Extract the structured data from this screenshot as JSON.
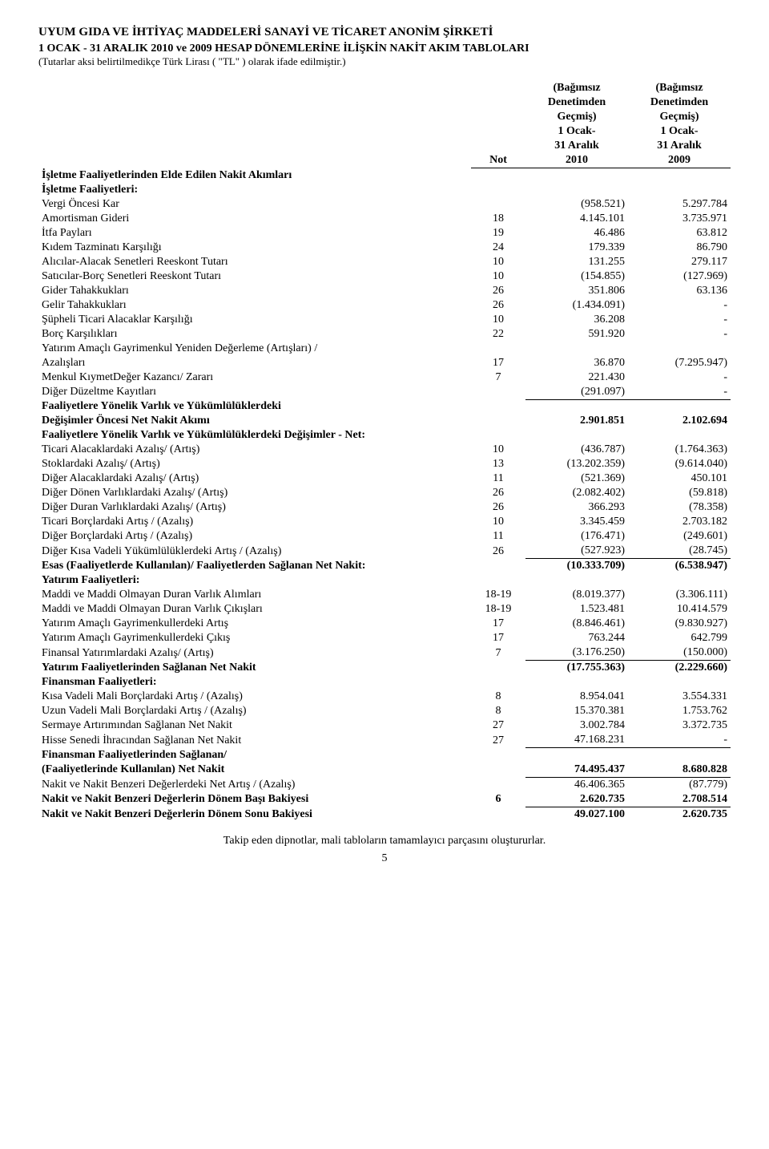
{
  "header": {
    "company": "UYUM GIDA VE İHTİYAÇ MADDELERİ SANAYİ VE TİCARET ANONİM ŞİRKETİ",
    "line1": "1 OCAK - 31 ARALIK 2010 ve 2009 HESAP DÖNEMLERİNE İLİŞKİN NAKİT AKIM TABLOLARI",
    "line2": "(Tutarlar aksi belirtilmedikçe Türk Lirası ( \"TL\" ) olarak ifade edilmiştir.)"
  },
  "colhdr": {
    "not": "Not",
    "c1a": "(Bağımsız",
    "c1b": "Denetimden",
    "c1c": "Geçmiş)",
    "c1d": "1 Ocak-",
    "c1e": "31 Aralık",
    "c1f": "2010",
    "c2a": "(Bağımsız",
    "c2b": "Denetimden",
    "c2c": "Geçmiş)",
    "c2d": "1 Ocak-",
    "c2e": "31 Aralık",
    "c2f": "2009"
  },
  "rows": [
    {
      "label": "İşletme Faaliyetlerinden Elde Edilen Nakit Akımları",
      "not": "",
      "v1": "",
      "v2": "",
      "bold": true
    },
    {
      "label": "İşletme Faaliyetleri:",
      "not": "",
      "v1": "",
      "v2": "",
      "bold": true
    },
    {
      "label": "Vergi Öncesi Kar",
      "not": "",
      "v1": "(958.521)",
      "v2": "5.297.784"
    },
    {
      "label": "Amortisman Gideri",
      "not": "18",
      "v1": "4.145.101",
      "v2": "3.735.971"
    },
    {
      "label": "İtfa Payları",
      "not": "19",
      "v1": "46.486",
      "v2": "63.812"
    },
    {
      "label": "Kıdem Tazminatı Karşılığı",
      "not": "24",
      "v1": "179.339",
      "v2": "86.790"
    },
    {
      "label": "Alıcılar-Alacak Senetleri Reeskont Tutarı",
      "not": "10",
      "v1": "131.255",
      "v2": "279.117"
    },
    {
      "label": "Satıcılar-Borç Senetleri Reeskont Tutarı",
      "not": "10",
      "v1": "(154.855)",
      "v2": "(127.969)"
    },
    {
      "label": "Gider Tahakkukları",
      "not": "26",
      "v1": "351.806",
      "v2": "63.136"
    },
    {
      "label": "Gelir Tahakkukları",
      "not": "26",
      "v1": "(1.434.091)",
      "v2": "-"
    },
    {
      "label": "Şüpheli Ticari Alacaklar Karşılığı",
      "not": "10",
      "v1": "36.208",
      "v2": "-"
    },
    {
      "label": "Borç Karşılıkları",
      "not": "22",
      "v1": "591.920",
      "v2": "-"
    },
    {
      "label": "Yatırım Amaçlı Gayrimenkul Yeniden Değerleme (Artışları) /",
      "not": "",
      "v1": "",
      "v2": ""
    },
    {
      "label": "Azalışları",
      "not": "17",
      "v1": "36.870",
      "v2": "(7.295.947)"
    },
    {
      "label": "Menkul KıymetDeğer Kazancı/ Zararı",
      "not": "7",
      "v1": "221.430",
      "v2": "-"
    },
    {
      "label": "Diğer Düzeltme Kayıtları",
      "not": "",
      "v1": "(291.097)",
      "v2": "-",
      "underline": true
    },
    {
      "label": "Faaliyetlere Yönelik Varlık ve Yükümlülüklerdeki",
      "not": "",
      "v1": "",
      "v2": "",
      "bold": true
    },
    {
      "label": "Değişimler Öncesi Net Nakit Akımı",
      "not": "",
      "v1": "2.901.851",
      "v2": "2.102.694",
      "bold": true
    },
    {
      "label": "Faaliyetlere Yönelik Varlık ve Yükümlülüklerdeki Değişimler - Net:",
      "not": "",
      "v1": "",
      "v2": "",
      "bold": true
    },
    {
      "label": "Ticari Alacaklardaki Azalış/ (Artış)",
      "not": "10",
      "v1": "(436.787)",
      "v2": "(1.764.363)"
    },
    {
      "label": "Stoklardaki Azalış/ (Artış)",
      "not": "13",
      "v1": "(13.202.359)",
      "v2": "(9.614.040)"
    },
    {
      "label": "Diğer Alacaklardaki Azalış/ (Artış)",
      "not": "11",
      "v1": "(521.369)",
      "v2": "450.101"
    },
    {
      "label": "Diğer Dönen Varlıklardaki Azalış/ (Artış)",
      "not": "26",
      "v1": "(2.082.402)",
      "v2": "(59.818)"
    },
    {
      "label": "Diğer Duran Varlıklardaki Azalış/ (Artış)",
      "not": "26",
      "v1": "366.293",
      "v2": "(78.358)"
    },
    {
      "label": "Ticari Borçlardaki Artış / (Azalış)",
      "not": "10",
      "v1": "3.345.459",
      "v2": "2.703.182"
    },
    {
      "label": "Diğer Borçlardaki Artış / (Azalış)",
      "not": "11",
      "v1": "(176.471)",
      "v2": "(249.601)"
    },
    {
      "label": "Diğer Kısa Vadeli Yükümlülüklerdeki Artış / (Azalış)",
      "not": "26",
      "v1": "(527.923)",
      "v2": "(28.745)",
      "underline": true
    },
    {
      "label": "Esas (Faaliyetlerde Kullanılan)/ Faaliyetlerden Sağlanan Net Nakit:",
      "not": "",
      "v1": "(10.333.709)",
      "v2": "(6.538.947)",
      "bold": true
    },
    {
      "label": "Yatırım Faaliyetleri:",
      "not": "",
      "v1": "",
      "v2": "",
      "bold": true
    },
    {
      "label": "Maddi ve Maddi Olmayan Duran Varlık Alımları",
      "not": "18-19",
      "v1": "(8.019.377)",
      "v2": "(3.306.111)"
    },
    {
      "label": "Maddi ve Maddi Olmayan Duran Varlık Çıkışları",
      "not": "18-19",
      "v1": "1.523.481",
      "v2": "10.414.579"
    },
    {
      "label": "Yatırım Amaçlı Gayrimenkullerdeki Artış",
      "not": "17",
      "v1": "(8.846.461)",
      "v2": "(9.830.927)"
    },
    {
      "label": "Yatırım Amaçlı Gayrimenkullerdeki  Çıkış",
      "not": "17",
      "v1": "763.244",
      "v2": "642.799"
    },
    {
      "label": "Finansal Yatırımlardaki Azalış/ (Artış)",
      "not": "7",
      "v1": "(3.176.250)",
      "v2": "(150.000)",
      "underline": true
    },
    {
      "label": "Yatırım Faaliyetlerinden Sağlanan Net Nakit",
      "not": "",
      "v1": "(17.755.363)",
      "v2": "(2.229.660)",
      "bold": true
    },
    {
      "label": "Finansman Faaliyetleri:",
      "not": "",
      "v1": "",
      "v2": "",
      "bold": true
    },
    {
      "label": "Kısa Vadeli Mali Borçlardaki Artış / (Azalış)",
      "not": "8",
      "v1": "8.954.041",
      "v2": "3.554.331"
    },
    {
      "label": "Uzun Vadeli Mali Borçlardaki Artış / (Azalış)",
      "not": "8",
      "v1": "15.370.381",
      "v2": "1.753.762"
    },
    {
      "label": "Sermaye Artırımından Sağlanan Net Nakit",
      "not": "27",
      "v1": "3.002.784",
      "v2": "3.372.735"
    },
    {
      "label": "Hisse Senedi İhracından Sağlanan Net Nakit",
      "not": "27",
      "v1": "47.168.231",
      "v2": "-",
      "underline": true
    },
    {
      "label": "Finansman Faaliyetlerinden Sağlanan/",
      "not": "",
      "v1": "",
      "v2": "",
      "bold": true
    },
    {
      "label": "(Faaliyetlerinde Kullanılan) Net Nakit",
      "not": "",
      "v1": "74.495.437",
      "v2": "8.680.828",
      "bold": true,
      "underline": true
    },
    {
      "label": "Nakit ve Nakit Benzeri Değerlerdeki Net Artış / (Azalış)",
      "not": "",
      "v1": "46.406.365",
      "v2": "(87.779)"
    },
    {
      "label": "Nakit ve Nakit Benzeri Değerlerin Dönem Başı Bakiyesi",
      "not": "6",
      "v1": "2.620.735",
      "v2": "2.708.514",
      "bold": true,
      "underline": true
    },
    {
      "label": "Nakit ve Nakit Benzeri Değerlerin Dönem Sonu Bakiyesi",
      "not": "",
      "v1": "49.027.100",
      "v2": "2.620.735",
      "bold": true
    }
  ],
  "footer": {
    "note": "Takip eden dipnotlar, mali tabloların tamamlayıcı parçasını oluştururlar.",
    "page": "5"
  }
}
